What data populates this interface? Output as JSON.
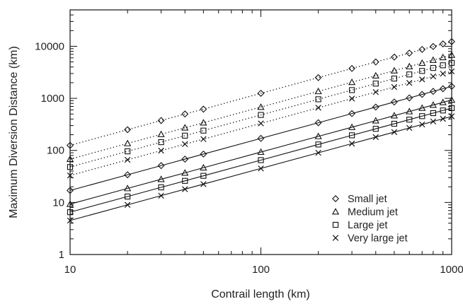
{
  "chart_data": {
    "type": "scatter",
    "xlabel": "Contrail length (km)",
    "ylabel": "Maximum Diversion Distance (km)",
    "x_scale": "log",
    "y_scale": "log",
    "xlim": [
      10,
      1000
    ],
    "ylim": [
      1,
      50000
    ],
    "x_ticks": [
      10,
      100,
      1000
    ],
    "x_tick_labels": [
      "10",
      "100",
      "1000"
    ],
    "y_ticks": [
      1,
      10,
      100,
      1000,
      10000
    ],
    "y_tick_labels": [
      "1",
      "10",
      "100",
      "1000",
      "10000"
    ],
    "grid": false,
    "legend_position": "bottom-right",
    "x": [
      10,
      20,
      30,
      40,
      50,
      100,
      200,
      300,
      400,
      500,
      600,
      700,
      800,
      900,
      1000
    ],
    "series": [
      {
        "name": "Small jet",
        "marker": "diamond",
        "line": "dotted",
        "values": [
          125,
          250,
          375,
          500,
          620,
          1250,
          2500,
          3750,
          5000,
          6200,
          7400,
          8700,
          9900,
          11100,
          12300
        ]
      },
      {
        "name": "Medium jet",
        "marker": "triangle",
        "line": "dotted",
        "values": [
          68,
          136,
          204,
          272,
          340,
          680,
          1360,
          2040,
          2720,
          3400,
          4080,
          4760,
          5440,
          6120,
          6800
        ]
      },
      {
        "name": "Large jet",
        "marker": "square",
        "line": "dotted",
        "values": [
          48,
          96,
          144,
          192,
          240,
          480,
          960,
          1440,
          1920,
          2400,
          2880,
          3360,
          3840,
          4320,
          4800
        ]
      },
      {
        "name": "Very large jet",
        "marker": "x",
        "line": "dotted",
        "values": [
          33,
          66,
          99,
          132,
          165,
          330,
          660,
          990,
          1320,
          1650,
          1980,
          2310,
          2640,
          2970,
          3300
        ]
      },
      {
        "name": "Small jet",
        "marker": "diamond",
        "line": "solid",
        "values": [
          17,
          34,
          51,
          68,
          85,
          170,
          340,
          510,
          680,
          850,
          1020,
          1190,
          1360,
          1530,
          1700
        ]
      },
      {
        "name": "Medium jet",
        "marker": "triangle",
        "line": "solid",
        "values": [
          9.3,
          18.6,
          27.9,
          37,
          46.5,
          93,
          186,
          279,
          372,
          465,
          558,
          651,
          744,
          837,
          930
        ]
      },
      {
        "name": "Large jet",
        "marker": "square",
        "line": "solid",
        "values": [
          6.5,
          13,
          19.5,
          26,
          32.5,
          65,
          130,
          195,
          260,
          325,
          390,
          455,
          520,
          585,
          650
        ]
      },
      {
        "name": "Very large jet",
        "marker": "x",
        "line": "solid",
        "values": [
          4.5,
          9,
          13.5,
          18,
          22.5,
          45,
          90,
          135,
          180,
          225,
          270,
          315,
          360,
          405,
          450
        ]
      }
    ]
  }
}
